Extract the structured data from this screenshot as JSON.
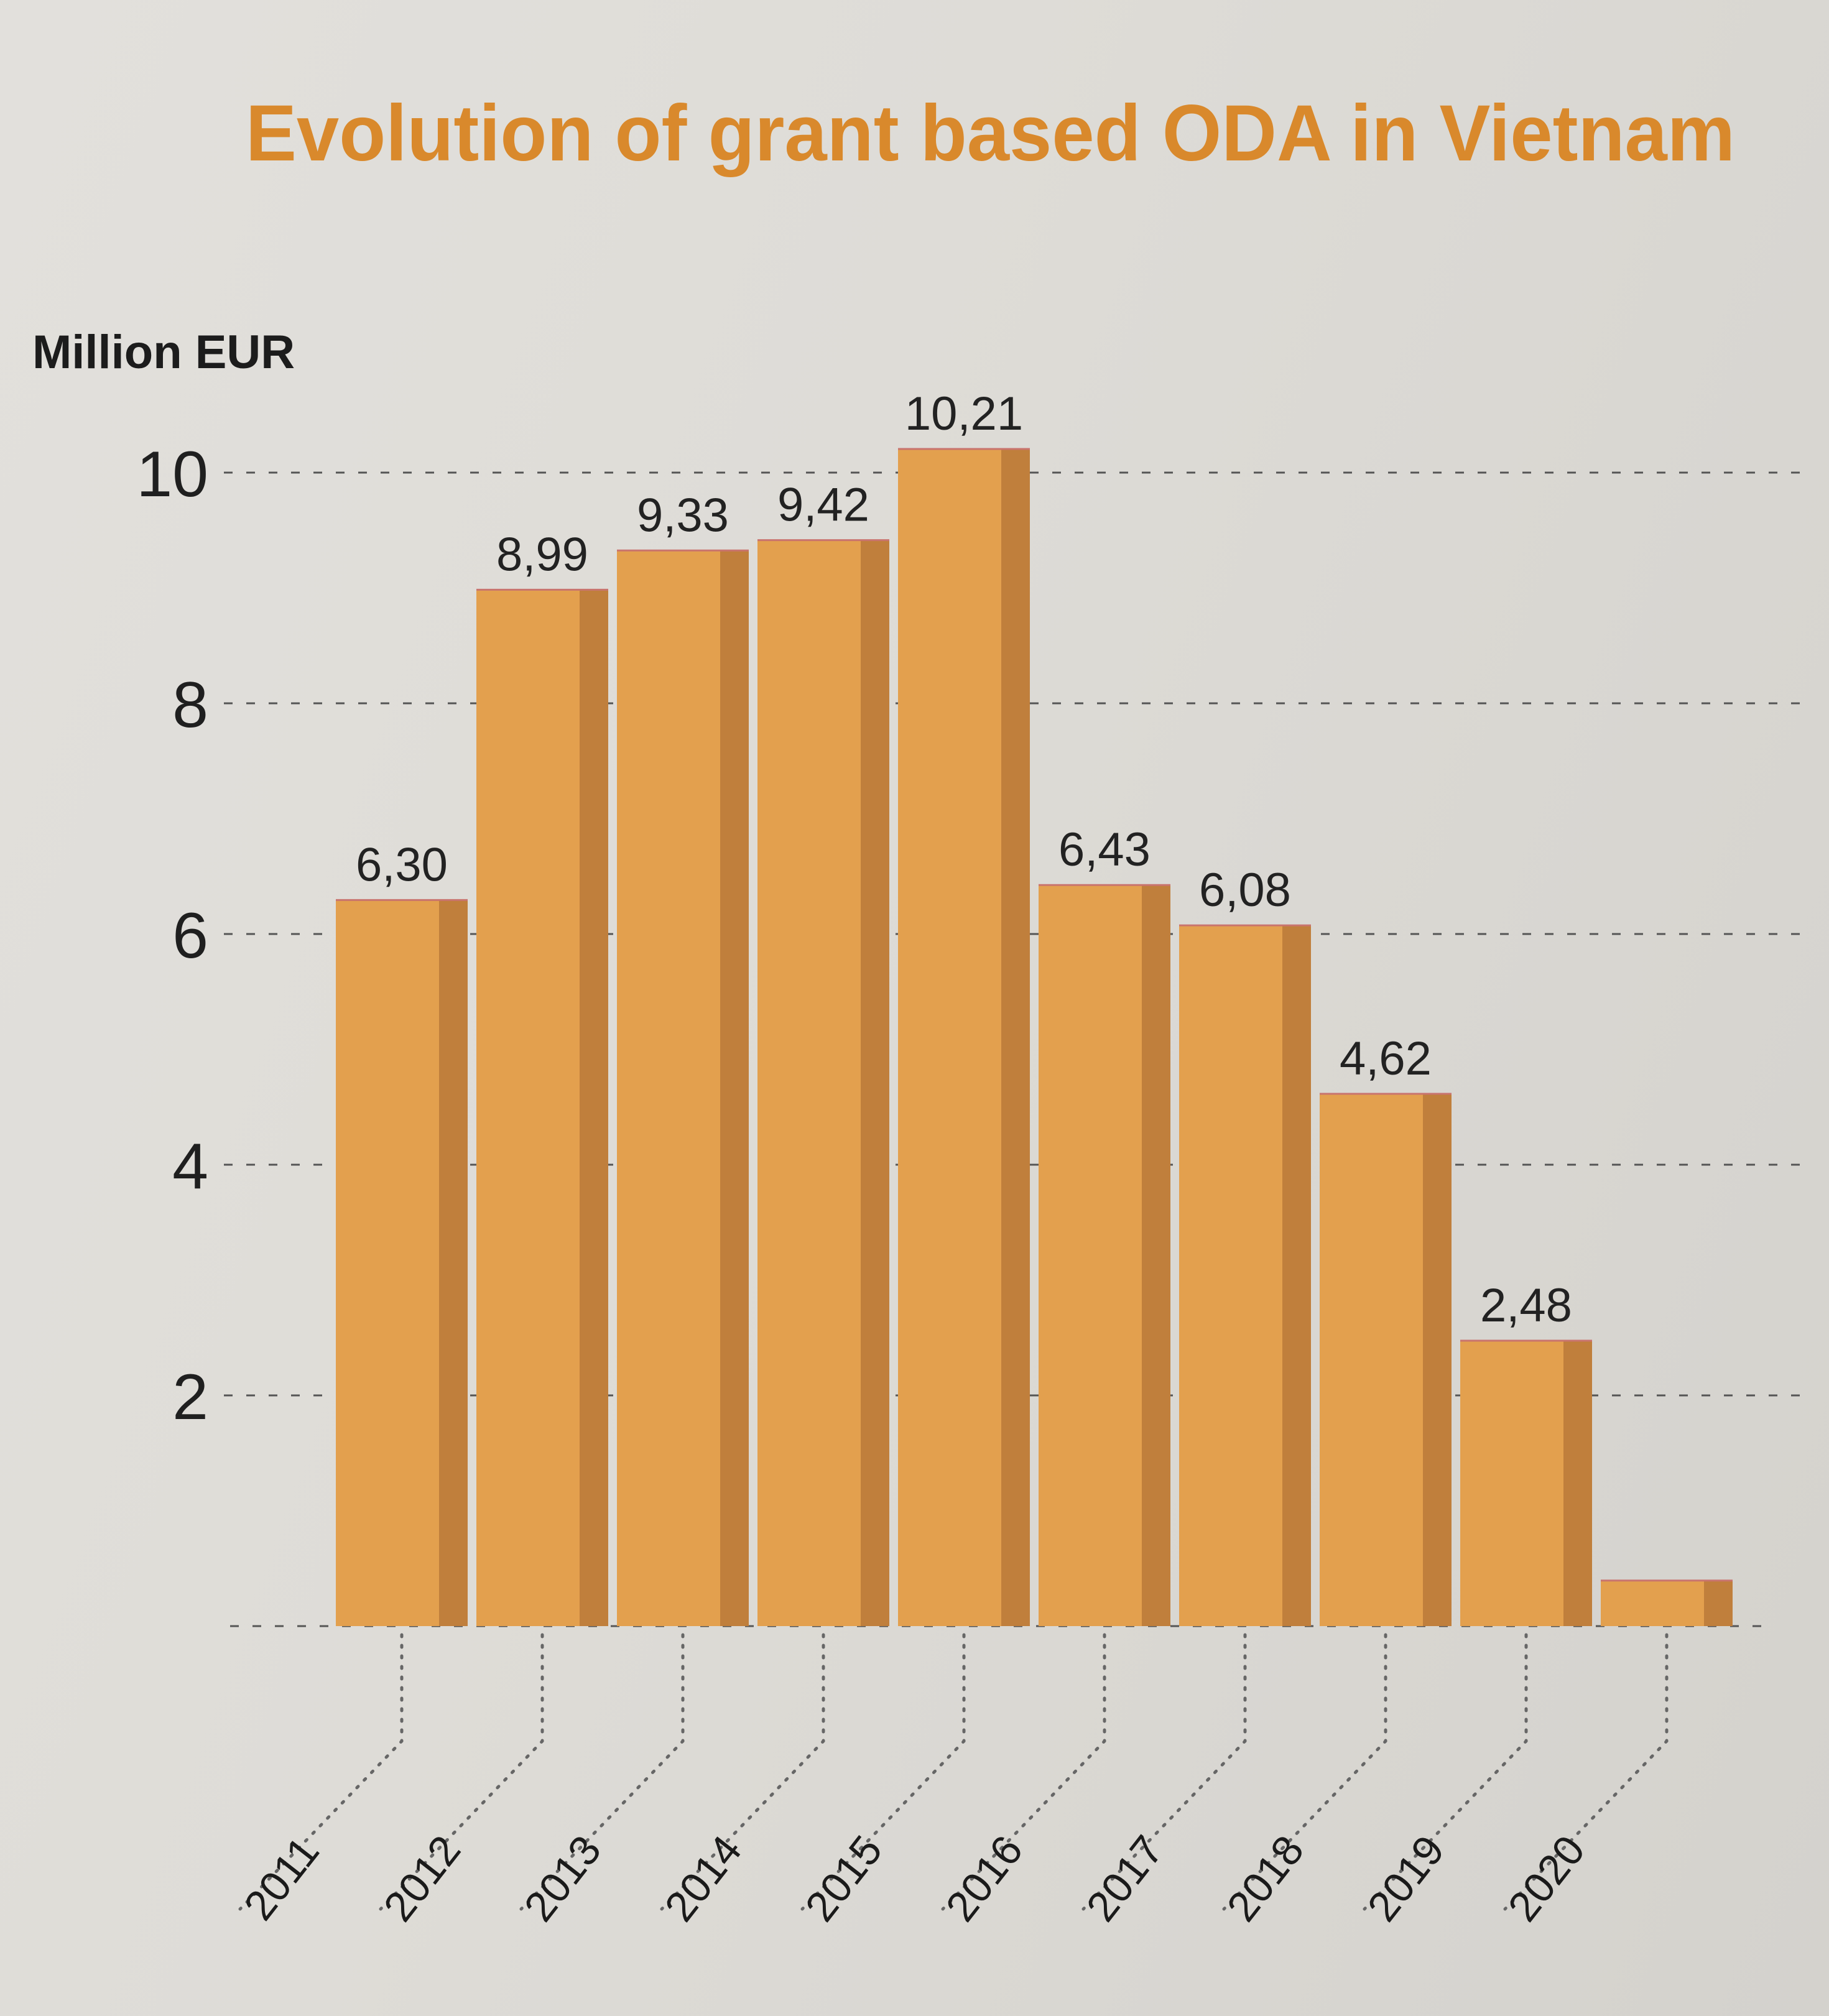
{
  "chart_data": {
    "type": "bar",
    "title": "Evolution of grant based ODA in Vietnam",
    "ylabel": "Million EUR",
    "xlabel": "",
    "ylim": [
      0,
      10
    ],
    "yticks": [
      "2",
      "4",
      "6",
      "8",
      "10"
    ],
    "grid": true,
    "categories": [
      "2011",
      "2012",
      "2013",
      "2014",
      "2015",
      "2016",
      "2017",
      "2018",
      "2019",
      "2020",
      ""
    ],
    "values": [
      6.3,
      8.99,
      9.33,
      9.42,
      10.21,
      6.43,
      6.08,
      4.62,
      2.48,
      0.4,
      null
    ],
    "value_labels": [
      "6,30",
      "8,99",
      "9,33",
      "9,42",
      "10,21",
      "6,43",
      "6,08",
      "4,62",
      "2,48",
      "",
      ""
    ],
    "bar_color": "#e3a04e",
    "bar_shade_color": "#c07f3c",
    "title_color": "#d9892c"
  }
}
